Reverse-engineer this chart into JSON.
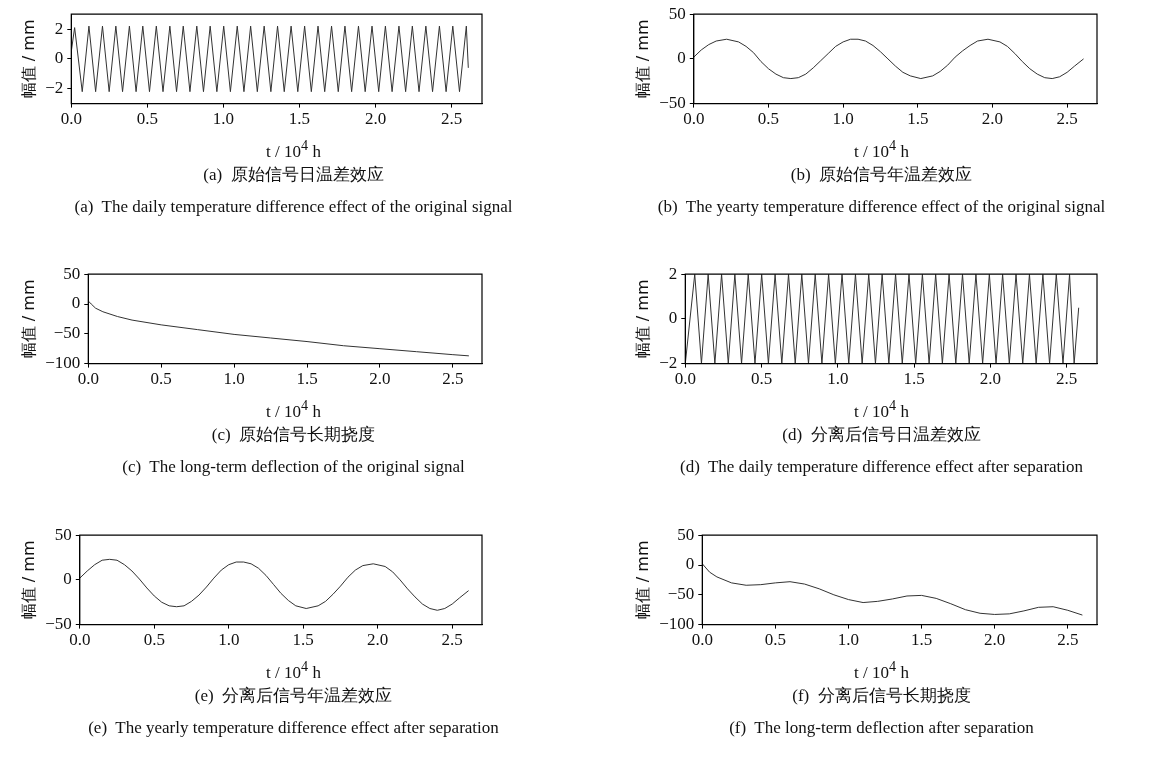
{
  "chart_data": [
    {
      "type": "line",
      "title": "(a)  原始信号日温差效应",
      "subtitle": "(a)  The daily temperature difference effect of the original signal",
      "xlabel": "t / 10$^{4}$ h",
      "ylabel": "幅值 / mm",
      "xlim": [
        0,
        2.7
      ],
      "xticks": [
        {
          "value": 0,
          "label": "0.0"
        },
        {
          "value": 0.5,
          "label": "0.5"
        },
        {
          "value": 1,
          "label": "1.0"
        },
        {
          "value": 1.5,
          "label": "1.5"
        },
        {
          "value": 2,
          "label": "2.0"
        },
        {
          "value": 2.5,
          "label": "2.5"
        }
      ],
      "ylim": [
        -3,
        3
      ],
      "yticks": [
        {
          "value": -2,
          "label": "−2"
        },
        0,
        2
      ],
      "grid": false,
      "series": [
        {
          "color": "#333333",
          "x": [
            0,
            0.022,
            0.072,
            0.116,
            0.16,
            0.205,
            0.249,
            0.293,
            0.337,
            0.382,
            0.426,
            0.47,
            0.514,
            0.559,
            0.603,
            0.648,
            0.692,
            0.736,
            0.78,
            0.825,
            0.869,
            0.913,
            0.957,
            1.002,
            1.046,
            1.091,
            1.135,
            1.179,
            1.223,
            1.268,
            1.312,
            1.356,
            1.4,
            1.445,
            1.489,
            1.534,
            1.578,
            1.622,
            1.666,
            1.711,
            1.755,
            1.799,
            1.843,
            1.888,
            1.932,
            1.977,
            2.021,
            2.065,
            2.109,
            2.154,
            2.198,
            2.242,
            2.286,
            2.331,
            2.375,
            2.42,
            2.464,
            2.508,
            2.552,
            2.597,
            2.61
          ],
          "values": [
            0.5,
            2.1,
            -2.2,
            2.2,
            -2.2,
            2.2,
            -2.2,
            2.2,
            -2.2,
            2.2,
            -2.2,
            2.2,
            -2.2,
            2.2,
            -2.2,
            2.2,
            -2.2,
            2.2,
            -2.2,
            2.2,
            -2.2,
            2.2,
            -2.2,
            2.2,
            -2.2,
            2.2,
            -2.2,
            2.2,
            -2.2,
            2.2,
            -2.2,
            2.2,
            -2.2,
            2.2,
            -2.2,
            2.2,
            -2.2,
            2.2,
            -2.2,
            2.2,
            -2.2,
            2.2,
            -2.2,
            2.2,
            -2.2,
            2.2,
            -2.2,
            2.2,
            -2.2,
            2.2,
            -2.2,
            2.2,
            -2.2,
            2.2,
            -2.2,
            2.2,
            -2.2,
            2.2,
            -2.2,
            2.2,
            -0.6
          ]
        }
      ]
    },
    {
      "type": "line",
      "title": "(b)  原始信号年温差效应",
      "subtitle": "(b)  The yearty temperature difference effect of the original signal",
      "xlabel": "t / 10$^{4}$ h",
      "ylabel": "幅值 / mm",
      "xlim": [
        0,
        2.7
      ],
      "xticks": [
        {
          "value": 0,
          "label": "0.0"
        },
        {
          "value": 0.5,
          "label": "0.5"
        },
        {
          "value": 1,
          "label": "1.0"
        },
        {
          "value": 1.5,
          "label": "1.5"
        },
        {
          "value": 2,
          "label": "2.0"
        },
        {
          "value": 2.5,
          "label": "2.5"
        }
      ],
      "ylim": [
        -50,
        50
      ],
      "yticks": [
        {
          "value": -50,
          "label": "−50"
        },
        0,
        50
      ],
      "grid": false,
      "series": [
        {
          "color": "#333333",
          "x": [
            0,
            0.05,
            0.1,
            0.15,
            0.22,
            0.3,
            0.35,
            0.4,
            0.45,
            0.5,
            0.55,
            0.6,
            0.65,
            0.7,
            0.75,
            0.8,
            0.85,
            0.9,
            0.95,
            1.0,
            1.05,
            1.1,
            1.15,
            1.2,
            1.25,
            1.3,
            1.35,
            1.4,
            1.45,
            1.52,
            1.6,
            1.65,
            1.7,
            1.75,
            1.8,
            1.85,
            1.9,
            1.97,
            2.05,
            2.1,
            2.15,
            2.2,
            2.25,
            2.3,
            2.35,
            2.4,
            2.45,
            2.5,
            2.55,
            2.61
          ],
          "values": [
            2,
            10,
            16,
            20,
            22,
            19,
            14,
            7,
            -3,
            -11,
            -17,
            -21,
            -22,
            -21,
            -17,
            -10,
            -2,
            6,
            14,
            19,
            22,
            22,
            20,
            15,
            8,
            0,
            -8,
            -15,
            -19,
            -22,
            -19,
            -14,
            -7,
            2,
            9,
            15,
            20,
            22,
            19,
            14,
            6,
            -3,
            -11,
            -17,
            -21,
            -22,
            -20,
            -15,
            -8,
            0
          ]
        }
      ]
    },
    {
      "type": "line",
      "title": "(c)  原始信号长期挠度",
      "subtitle": "(c)  The long-term deflection of the original signal",
      "xlabel": "t / 10$^{4}$ h",
      "ylabel": "幅值 / mm",
      "xlim": [
        0,
        2.7
      ],
      "xticks": [
        {
          "value": 0,
          "label": "0.0"
        },
        {
          "value": 0.5,
          "label": "0.5"
        },
        {
          "value": 1,
          "label": "1.0"
        },
        {
          "value": 1.5,
          "label": "1.5"
        },
        {
          "value": 2,
          "label": "2.0"
        },
        {
          "value": 2.5,
          "label": "2.5"
        }
      ],
      "ylim": [
        -100,
        50
      ],
      "yticks": [
        {
          "value": -100,
          "label": "−100"
        },
        {
          "value": -50,
          "label": "−50"
        },
        0,
        50
      ],
      "grid": false,
      "series": [
        {
          "color": "#333333",
          "x": [
            0,
            0.02,
            0.05,
            0.1,
            0.2,
            0.3,
            0.5,
            0.75,
            1.0,
            1.25,
            1.5,
            1.75,
            2.0,
            2.25,
            2.5,
            2.61
          ],
          "values": [
            5,
            0,
            -7,
            -13,
            -21,
            -27,
            -35,
            -43,
            -51,
            -57,
            -63,
            -70,
            -75,
            -80,
            -85,
            -87
          ]
        }
      ]
    },
    {
      "type": "line",
      "title": "(d)  分离后信号日温差效应",
      "subtitle": "(d)  The daily temperature difference effect after separation",
      "xlabel": "t / 10$^{4}$ h",
      "ylabel": "幅值 / mm",
      "xlim": [
        0,
        2.7
      ],
      "xticks": [
        {
          "value": 0,
          "label": "0.0"
        },
        {
          "value": 0.5,
          "label": "0.5"
        },
        {
          "value": 1,
          "label": "1.0"
        },
        {
          "value": 1.5,
          "label": "1.5"
        },
        {
          "value": 2,
          "label": "2.0"
        },
        {
          "value": 2.5,
          "label": "2.5"
        }
      ],
      "ylim": [
        -2,
        2
      ],
      "yticks": [
        {
          "value": -2,
          "label": "−2"
        },
        0,
        2
      ],
      "grid": false,
      "series": [
        {
          "color": "#333333",
          "x": [
            0,
            0.062,
            0.106,
            0.15,
            0.194,
            0.238,
            0.282,
            0.325,
            0.369,
            0.413,
            0.457,
            0.501,
            0.545,
            0.589,
            0.633,
            0.677,
            0.721,
            0.764,
            0.808,
            0.852,
            0.896,
            0.94,
            0.984,
            1.028,
            1.072,
            1.116,
            1.16,
            1.203,
            1.247,
            1.291,
            1.335,
            1.379,
            1.423,
            1.467,
            1.511,
            1.555,
            1.599,
            1.642,
            1.686,
            1.73,
            1.774,
            1.818,
            1.862,
            1.906,
            1.95,
            1.994,
            2.038,
            2.081,
            2.125,
            2.169,
            2.213,
            2.257,
            2.301,
            2.345,
            2.389,
            2.433,
            2.477,
            2.52,
            2.55,
            2.58
          ],
          "values": [
            -2,
            2,
            -2,
            2,
            -2,
            2,
            -2,
            2,
            -2,
            2,
            -2,
            2,
            -2,
            2,
            -2,
            2,
            -2,
            2,
            -2,
            2,
            -2,
            2,
            -2,
            2,
            -2,
            2,
            -2,
            2,
            -2,
            2,
            -2,
            2,
            -2,
            2,
            -2,
            2,
            -2,
            2,
            -2,
            2,
            -2,
            2,
            -2,
            2,
            -2,
            2,
            -2,
            2,
            -2,
            2,
            -2,
            2,
            -2,
            2,
            -2,
            2,
            -2,
            2,
            -2,
            0.5
          ]
        }
      ]
    },
    {
      "type": "line",
      "title": "(e)  分离后信号年温差效应",
      "subtitle": "(e)  The yearly temperature difference effect after separation",
      "xlabel": "t / 10$^{4}$ h",
      "ylabel": "幅值 / mm",
      "xlim": [
        0,
        2.7
      ],
      "xticks": [
        {
          "value": 0,
          "label": "0.0"
        },
        {
          "value": 0.5,
          "label": "0.5"
        },
        {
          "value": 1,
          "label": "1.0"
        },
        {
          "value": 1.5,
          "label": "1.5"
        },
        {
          "value": 2,
          "label": "2.0"
        },
        {
          "value": 2.5,
          "label": "2.5"
        }
      ],
      "ylim": [
        -50,
        50
      ],
      "yticks": [
        {
          "value": -50,
          "label": "−50"
        },
        0,
        50
      ],
      "grid": false,
      "series": [
        {
          "color": "#333333",
          "x": [
            0,
            0.05,
            0.1,
            0.15,
            0.2,
            0.25,
            0.3,
            0.35,
            0.4,
            0.45,
            0.5,
            0.55,
            0.6,
            0.65,
            0.7,
            0.75,
            0.8,
            0.85,
            0.9,
            0.95,
            1.0,
            1.05,
            1.1,
            1.15,
            1.2,
            1.25,
            1.3,
            1.35,
            1.4,
            1.45,
            1.52,
            1.6,
            1.65,
            1.7,
            1.75,
            1.8,
            1.85,
            1.9,
            1.97,
            2.05,
            2.1,
            2.15,
            2.2,
            2.25,
            2.3,
            2.35,
            2.4,
            2.45,
            2.5,
            2.55,
            2.61
          ],
          "values": [
            2,
            10,
            17,
            22,
            23,
            22,
            17,
            10,
            1,
            -9,
            -18,
            -25,
            -29,
            -30,
            -29,
            -24,
            -17,
            -8,
            2,
            11,
            17,
            20,
            20,
            18,
            13,
            5,
            -5,
            -15,
            -23,
            -29,
            -32,
            -29,
            -24,
            -16,
            -7,
            3,
            11,
            16,
            18,
            15,
            9,
            0,
            -10,
            -19,
            -27,
            -32,
            -34,
            -32,
            -27,
            -20,
            -12
          ]
        }
      ]
    },
    {
      "type": "line",
      "title": "(f)  分离后信号长期挠度",
      "subtitle": "(f)  The long-term deflection after separation",
      "xlabel": "t / 10$^{4}$ h",
      "ylabel": "幅值 / mm",
      "xlim": [
        0,
        2.7
      ],
      "xticks": [
        {
          "value": 0,
          "label": "0.0"
        },
        {
          "value": 0.5,
          "label": "0.5"
        },
        {
          "value": 1,
          "label": "1.0"
        },
        {
          "value": 1.5,
          "label": "1.5"
        },
        {
          "value": 2,
          "label": "2.0"
        },
        {
          "value": 2.5,
          "label": "2.5"
        }
      ],
      "ylim": [
        -100,
        50
      ],
      "yticks": [
        {
          "value": -100,
          "label": "−100"
        },
        {
          "value": -50,
          "label": "−50"
        },
        0,
        50
      ],
      "grid": false,
      "series": [
        {
          "color": "#333333",
          "x": [
            0,
            0.05,
            0.1,
            0.2,
            0.3,
            0.4,
            0.5,
            0.6,
            0.7,
            0.8,
            0.9,
            1.0,
            1.1,
            1.2,
            1.3,
            1.4,
            1.5,
            1.6,
            1.7,
            1.8,
            1.9,
            2.0,
            2.1,
            2.2,
            2.3,
            2.4,
            2.5,
            2.6
          ],
          "values": [
            2,
            -12,
            -20,
            -30,
            -34,
            -33,
            -30,
            -28,
            -32,
            -40,
            -50,
            -58,
            -63,
            -61,
            -57,
            -52,
            -51,
            -56,
            -65,
            -75,
            -81,
            -83,
            -82,
            -77,
            -71,
            -70,
            -76,
            -84
          ]
        }
      ]
    }
  ]
}
